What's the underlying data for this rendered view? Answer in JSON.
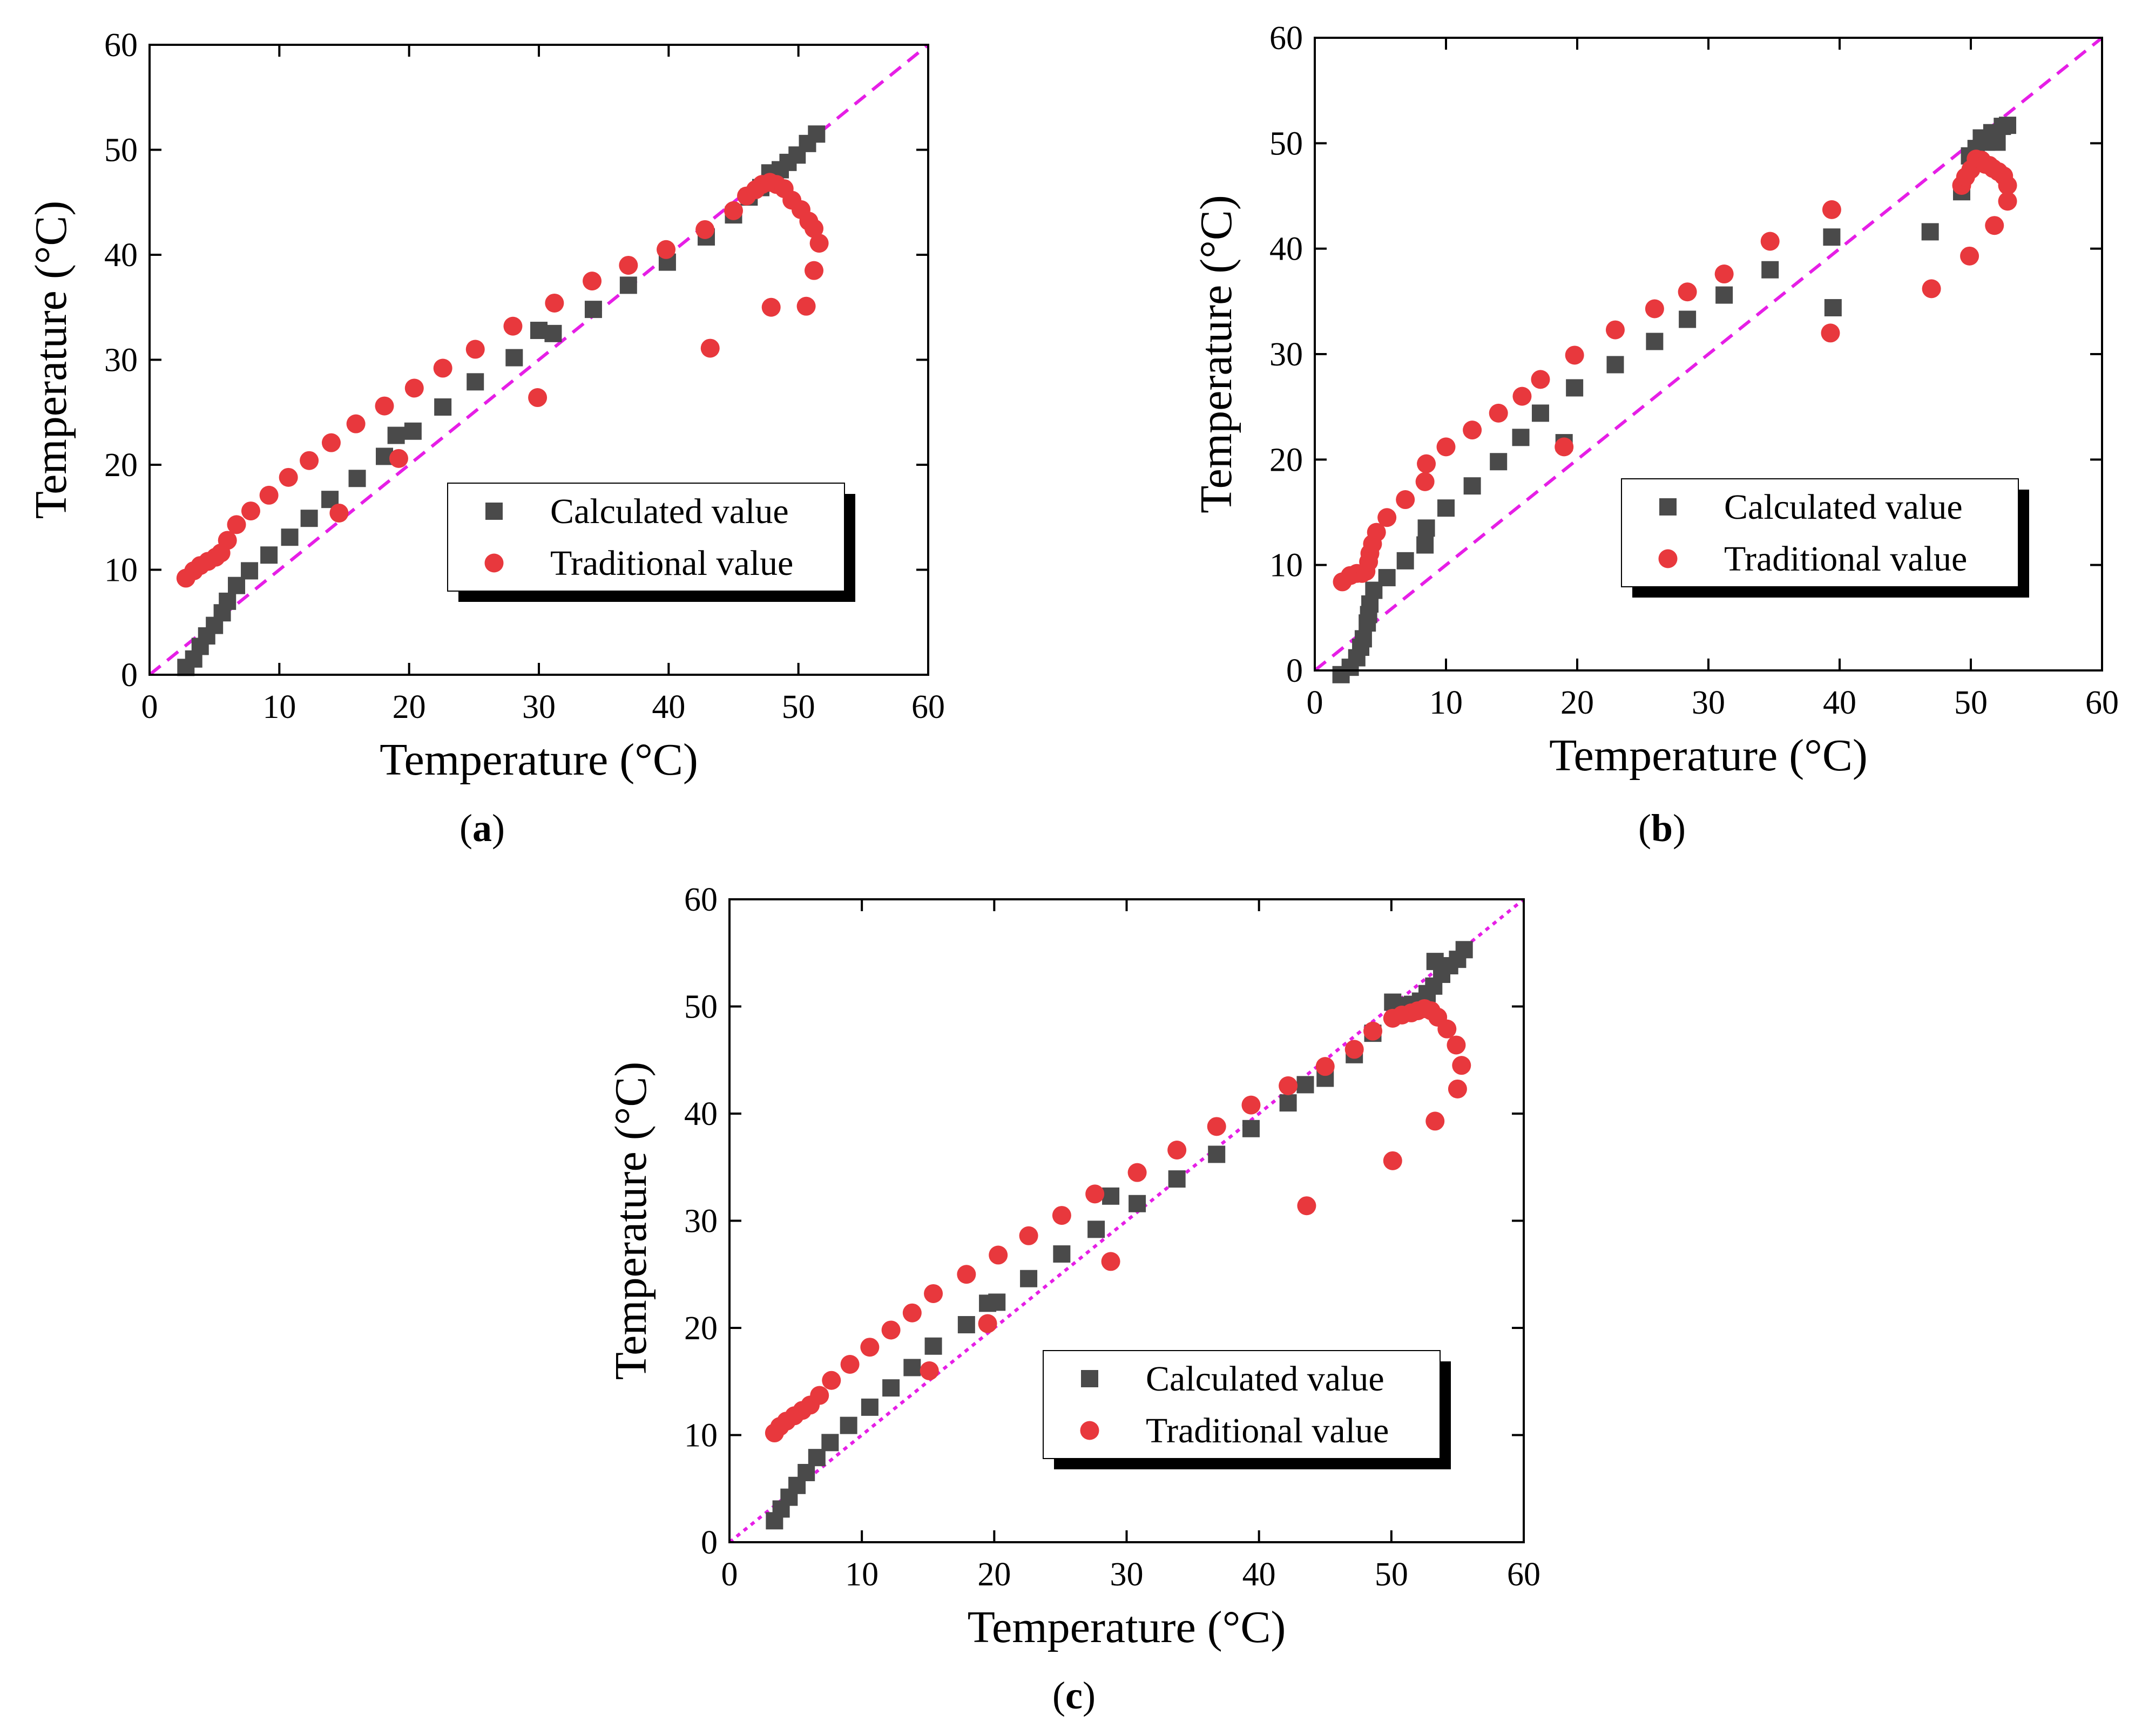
{
  "colors": {
    "calculated": "#4a4a4a",
    "traditional": "#e8383d",
    "reference_line": "#e61ee6",
    "legend_shadow": "#000000"
  },
  "chart_data": [
    {
      "panel": "a",
      "type": "scatter",
      "xlabel": "Temperature (°C)",
      "ylabel": "Temperature (°C)",
      "xlim": [
        0,
        60
      ],
      "ylim": [
        0,
        60
      ],
      "xticks": [
        0,
        10,
        20,
        30,
        40,
        50,
        60
      ],
      "yticks": [
        0,
        10,
        20,
        30,
        40,
        50,
        60
      ],
      "legend_position": "lower-right",
      "reference_line": {
        "style": "dashed",
        "from": [
          0,
          0
        ],
        "to": [
          60,
          60
        ]
      },
      "series": [
        {
          "name": "Calculated value",
          "marker": "square",
          "x": [
            2.8,
            3.4,
            3.9,
            4.4,
            5.0,
            5.6,
            6.0,
            6.7,
            7.7,
            9.2,
            10.8,
            12.3,
            13.9,
            16.0,
            18.1,
            19.0,
            20.3,
            22.6,
            25.1,
            28.1,
            30.0,
            31.1,
            34.2,
            36.9,
            39.9,
            42.9,
            45.0,
            46.2,
            47.1,
            47.8,
            48.6,
            49.2,
            49.9,
            50.7,
            51.4
          ],
          "y": [
            0.7,
            1.5,
            2.7,
            3.7,
            4.7,
            5.9,
            7.0,
            8.5,
            9.9,
            11.4,
            13.1,
            14.9,
            16.7,
            18.7,
            20.8,
            22.8,
            23.2,
            25.5,
            27.9,
            30.2,
            32.8,
            32.5,
            34.8,
            37.1,
            39.3,
            41.7,
            43.8,
            45.5,
            46.4,
            47.8,
            48.1,
            48.8,
            49.5,
            50.6,
            51.5
          ]
        },
        {
          "name": "Traditional value",
          "marker": "circle",
          "x": [
            2.8,
            3.4,
            3.9,
            4.5,
            5.1,
            5.5,
            6.0,
            6.7,
            7.8,
            9.2,
            10.7,
            12.3,
            14.0,
            14.6,
            15.9,
            18.1,
            19.2,
            20.4,
            22.6,
            25.1,
            28.0,
            29.9,
            31.2,
            34.1,
            36.9,
            39.8,
            42.8,
            43.2,
            45.0,
            46.0,
            46.7,
            47.2,
            47.8,
            48.3,
            48.9,
            49.5,
            50.2,
            50.8,
            51.2,
            51.6,
            51.2,
            50.6,
            47.9
          ],
          "y": [
            9.2,
            9.9,
            10.4,
            10.8,
            11.2,
            11.6,
            12.8,
            14.3,
            15.6,
            17.1,
            18.8,
            20.4,
            22.1,
            15.4,
            23.9,
            25.6,
            20.6,
            27.3,
            29.2,
            31.0,
            33.2,
            26.4,
            35.4,
            37.5,
            39.0,
            40.5,
            42.4,
            31.1,
            44.2,
            45.6,
            46.2,
            46.7,
            46.9,
            46.7,
            46.3,
            45.2,
            44.3,
            43.2,
            42.5,
            41.1,
            38.5,
            35.1,
            35.0
          ]
        }
      ]
    },
    {
      "panel": "b",
      "type": "scatter",
      "xlabel": "Temperature (°C)",
      "ylabel": "Temperature (°C)",
      "xlim": [
        0,
        60
      ],
      "ylim": [
        0,
        60
      ],
      "xticks": [
        0,
        10,
        20,
        30,
        40,
        50,
        60
      ],
      "yticks": [
        0,
        10,
        20,
        30,
        40,
        50,
        60
      ],
      "legend_position": "lower-right",
      "reference_line": {
        "style": "dashed",
        "from": [
          0,
          0
        ],
        "to": [
          60,
          60
        ]
      },
      "series": [
        {
          "name": "Calculated value",
          "marker": "square",
          "x": [
            2.0,
            2.7,
            3.2,
            3.5,
            3.7,
            4.0,
            4.1,
            4.2,
            4.5,
            5.5,
            6.9,
            8.4,
            8.5,
            10.0,
            12.0,
            14.0,
            15.7,
            17.2,
            19.0,
            19.8,
            22.9,
            25.9,
            28.4,
            31.2,
            34.7,
            39.4,
            39.5,
            46.9,
            49.3,
            49.9,
            50.4,
            50.8,
            51.2,
            51.6,
            52.0,
            52.4,
            52.8
          ],
          "y": [
            -0.4,
            0.3,
            1.2,
            2.2,
            3.0,
            4.5,
            5.3,
            6.3,
            7.6,
            8.8,
            10.4,
            11.9,
            13.5,
            15.4,
            17.5,
            19.8,
            22.1,
            24.4,
            21.6,
            26.8,
            29.0,
            31.2,
            33.3,
            35.6,
            38.0,
            41.1,
            34.4,
            41.6,
            45.4,
            48.8,
            49.5,
            50.5,
            50.1,
            51.0,
            50.1,
            51.6,
            51.7
          ]
        },
        {
          "name": "Traditional value",
          "marker": "circle",
          "x": [
            2.1,
            2.7,
            3.2,
            3.6,
            3.9,
            4.1,
            4.2,
            4.4,
            4.7,
            5.5,
            6.9,
            8.4,
            8.5,
            10.0,
            12.0,
            14.0,
            15.8,
            17.2,
            19.0,
            19.8,
            22.9,
            25.9,
            28.4,
            31.2,
            34.7,
            39.4,
            39.3,
            47.0,
            49.3,
            49.6,
            50.0,
            50.4,
            50.8,
            51.1,
            51.4,
            51.7,
            52.1,
            52.5,
            52.8,
            52.8,
            51.8,
            49.9
          ],
          "y": [
            8.4,
            9.0,
            9.2,
            9.2,
            9.4,
            10.3,
            11.1,
            12.0,
            13.1,
            14.5,
            16.2,
            17.9,
            19.6,
            21.2,
            22.8,
            24.4,
            26.0,
            27.6,
            21.2,
            29.9,
            32.3,
            34.3,
            35.9,
            37.6,
            40.7,
            43.7,
            32.0,
            36.2,
            46.0,
            46.8,
            47.5,
            48.5,
            48.4,
            48.0,
            47.9,
            47.6,
            47.3,
            46.9,
            46.0,
            44.5,
            42.2,
            39.3
          ]
        }
      ]
    },
    {
      "panel": "c",
      "type": "scatter",
      "xlabel": "Temperature (°C)",
      "ylabel": "Temperature (°C)",
      "xlim": [
        0,
        60
      ],
      "ylim": [
        0,
        60
      ],
      "xticks": [
        0,
        10,
        20,
        30,
        40,
        50,
        60
      ],
      "yticks": [
        0,
        10,
        20,
        30,
        40,
        50,
        60
      ],
      "legend_position": "lower-right",
      "reference_line": {
        "style": "dotted",
        "from": [
          0,
          0
        ],
        "to": [
          60,
          60
        ]
      },
      "series": [
        {
          "name": "Calculated value",
          "marker": "square",
          "x": [
            3.4,
            3.9,
            4.5,
            5.1,
            5.8,
            6.6,
            7.6,
            9.0,
            10.6,
            12.2,
            13.8,
            15.4,
            17.9,
            19.5,
            20.2,
            22.6,
            25.1,
            27.7,
            28.8,
            30.8,
            33.8,
            36.8,
            39.4,
            42.2,
            43.5,
            45.0,
            47.2,
            48.6,
            50.1,
            50.8,
            51.6,
            52.2,
            52.7,
            53.2,
            53.3,
            53.8,
            54.4,
            55.0,
            55.5
          ],
          "y": [
            2.0,
            3.1,
            4.2,
            5.3,
            6.5,
            7.9,
            9.3,
            10.9,
            12.6,
            14.4,
            16.3,
            18.3,
            20.3,
            22.3,
            22.4,
            24.6,
            26.9,
            29.2,
            32.3,
            31.6,
            33.9,
            36.2,
            38.6,
            41.0,
            42.7,
            43.3,
            45.5,
            47.5,
            50.4,
            50.1,
            50.2,
            50.5,
            51.2,
            51.9,
            54.2,
            53.0,
            53.8,
            54.4,
            55.3
          ]
        },
        {
          "name": "Traditional value",
          "marker": "circle",
          "x": [
            3.4,
            3.8,
            4.3,
            4.9,
            5.5,
            6.1,
            6.8,
            7.7,
            9.1,
            10.6,
            12.2,
            13.8,
            15.1,
            15.4,
            17.9,
            19.5,
            20.3,
            22.6,
            25.1,
            27.6,
            28.8,
            30.8,
            33.8,
            36.8,
            39.4,
            42.2,
            43.6,
            45.0,
            47.2,
            48.6,
            50.1,
            50.8,
            51.5,
            52.0,
            52.5,
            53.0,
            53.5,
            54.2,
            54.9,
            55.3,
            55.0,
            53.3,
            50.1
          ],
          "y": [
            10.2,
            10.8,
            11.3,
            11.8,
            12.3,
            12.8,
            13.7,
            15.1,
            16.6,
            18.2,
            19.8,
            21.4,
            16.0,
            23.2,
            25.0,
            20.4,
            26.8,
            28.6,
            30.5,
            32.5,
            26.2,
            34.5,
            36.6,
            38.8,
            40.8,
            42.6,
            31.4,
            44.4,
            46.0,
            47.7,
            48.9,
            49.2,
            49.4,
            49.6,
            49.8,
            49.6,
            49.0,
            47.9,
            46.4,
            44.5,
            42.3,
            39.3,
            35.6
          ]
        }
      ]
    }
  ],
  "panel_labels": [
    {
      "open": "(",
      "letter": "a",
      "close": ")"
    },
    {
      "open": "(",
      "letter": "b",
      "close": ")"
    },
    {
      "open": "(",
      "letter": "c",
      "close": ")"
    }
  ]
}
